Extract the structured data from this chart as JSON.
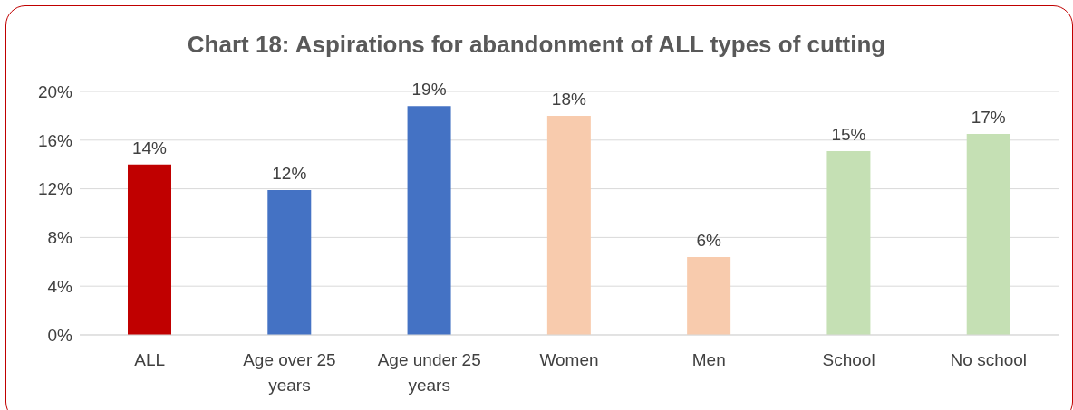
{
  "chart_data": {
    "type": "bar",
    "title": "Chart 18: Aspirations for abandonment of ALL types of cutting",
    "categories": [
      "ALL",
      "Age over 25 years",
      "Age under 25 years",
      "Women",
      "Men",
      "School",
      "No school"
    ],
    "values": [
      14.0,
      11.9,
      18.8,
      18.0,
      6.4,
      15.1,
      16.5
    ],
    "value_labels": [
      "14%",
      "12%",
      "19%",
      "18%",
      "6%",
      "15%",
      "17%"
    ],
    "colors": [
      "#c00000",
      "#4472c4",
      "#4472c4",
      "#f8cbad",
      "#f8cbad",
      "#c5e0b4",
      "#c5e0b4"
    ],
    "ylim": [
      0,
      20
    ],
    "yticks": [
      {
        "value": 0,
        "label": "0%"
      },
      {
        "value": 4,
        "label": "4%"
      },
      {
        "value": 8,
        "label": "8%"
      },
      {
        "value": 12,
        "label": "12%"
      },
      {
        "value": 16,
        "label": "16%"
      },
      {
        "value": 20,
        "label": "20%"
      }
    ],
    "grid": "y",
    "legend": false
  }
}
